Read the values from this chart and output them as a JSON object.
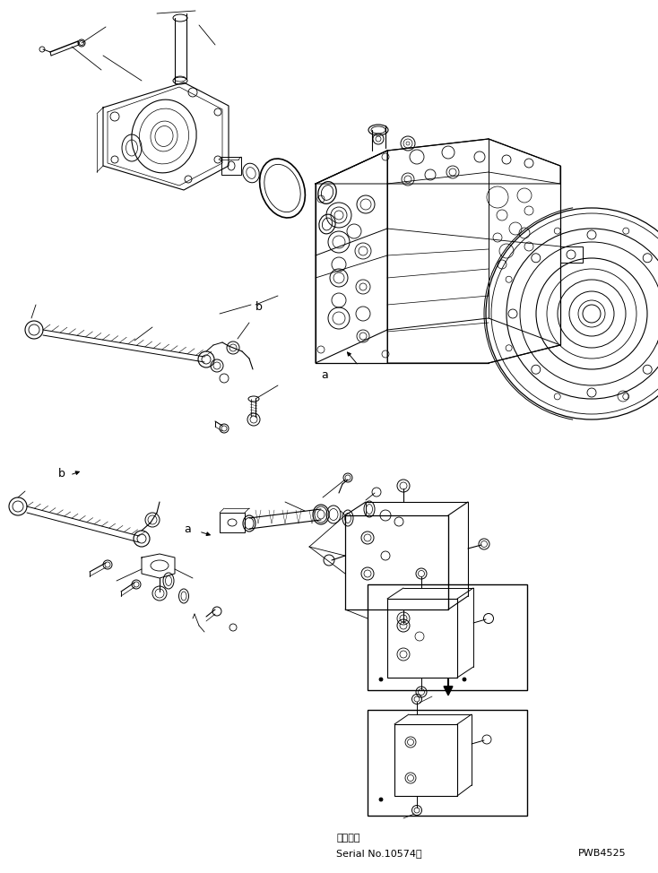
{
  "background_color": "#ffffff",
  "line_color": "#000000",
  "text_color": "#000000",
  "fig_width": 7.34,
  "fig_height": 9.74,
  "dpi": 100,
  "bottom_text_1": "適用号機",
  "bottom_text_2": "Serial No.10574～",
  "bottom_text_3": "PWB4525",
  "label_a_upper": "a",
  "label_b_upper": "b",
  "label_a_lower": "a",
  "label_b_lower": "b"
}
